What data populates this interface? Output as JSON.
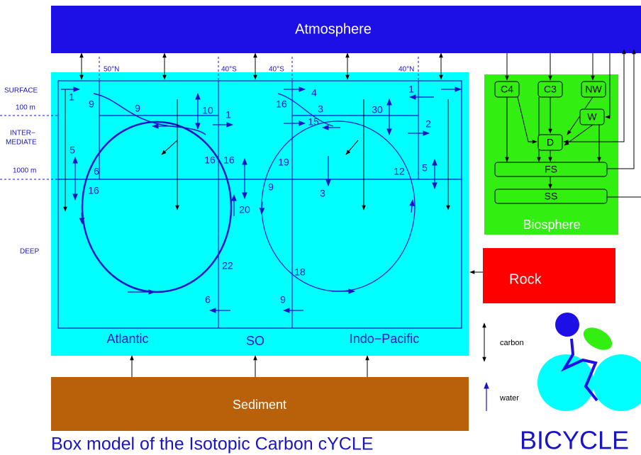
{
  "atmosphere": "Atmosphere",
  "depth_labels": {
    "surface": "SURFACE",
    "m100": "100 m",
    "intermediate": [
      "INTER−",
      "MEDIATE"
    ],
    "m1000": "1000 m",
    "deep": "DEEP"
  },
  "latitudes": [
    "50°N",
    "40°S",
    "40°S",
    "40°N"
  ],
  "basins": [
    "Atlantic",
    "SO",
    "Indo−Pacific"
  ],
  "fluxes": [
    1,
    9,
    9,
    10,
    1,
    5,
    6,
    16,
    16,
    16,
    20,
    22,
    6,
    4,
    16,
    3,
    15,
    30,
    2,
    1,
    19,
    9,
    3,
    12,
    5,
    18,
    9
  ],
  "biosphere": {
    "title": "Biosphere",
    "boxes": [
      "C4",
      "C3",
      "NW",
      "W",
      "D",
      "FS",
      "SS"
    ]
  },
  "rock": "Rock",
  "sediment": "Sediment",
  "legend": {
    "carbon": "carbon",
    "water": "water"
  },
  "title": "Box model of the Isotopic Carbon cYCLE",
  "logo": "BICYCLE"
}
